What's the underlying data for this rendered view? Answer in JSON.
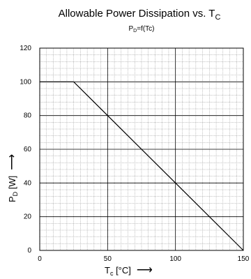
{
  "chart_data": {
    "type": "line",
    "title": "Allowable Power Dissipation vs. T",
    "title_subscript": "C",
    "subtitle": "P",
    "subtitle_subscript": "D",
    "subtitle_rest": "=f(Tc)",
    "xlabel": "T",
    "xlabel_subscript": "c",
    "xlabel_rest": " [°C]",
    "ylabel": "P",
    "ylabel_subscript": "D",
    "ylabel_rest": " [W]",
    "arrow": "⟶",
    "xlim": [
      0,
      150
    ],
    "ylim": [
      0,
      120
    ],
    "x_ticks": [
      "0",
      "50",
      "100",
      "150"
    ],
    "y_ticks": [
      "0",
      "20",
      "40",
      "60",
      "80",
      "100",
      "120"
    ],
    "grid": true,
    "series": [
      {
        "x": [
          0,
          25,
          150
        ],
        "y": [
          100,
          100,
          0
        ]
      }
    ]
  }
}
